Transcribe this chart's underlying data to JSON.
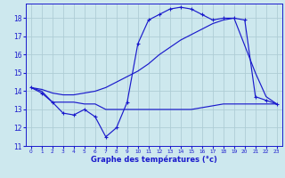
{
  "xlabel": "Graphe des températures (°c)",
  "xlim": [
    -0.5,
    23.5
  ],
  "ylim": [
    11,
    18.8
  ],
  "yticks": [
    11,
    12,
    13,
    14,
    15,
    16,
    17,
    18
  ],
  "xticks": [
    0,
    1,
    2,
    3,
    4,
    5,
    6,
    7,
    8,
    9,
    10,
    11,
    12,
    13,
    14,
    15,
    16,
    17,
    18,
    19,
    20,
    21,
    22,
    23
  ],
  "background_color": "#cde8ee",
  "grid_color": "#aecdd5",
  "line_color": "#1a1acc",
  "curve1_x": [
    0,
    1,
    2,
    3,
    4,
    5,
    6,
    7,
    8,
    9,
    10,
    11,
    12,
    13,
    14,
    15,
    16,
    17,
    18,
    19,
    20,
    21,
    22,
    23
  ],
  "curve1_y": [
    14.2,
    13.9,
    13.4,
    12.8,
    12.7,
    13.0,
    12.6,
    11.5,
    12.0,
    13.4,
    16.6,
    17.9,
    18.2,
    18.5,
    18.6,
    18.5,
    18.2,
    17.9,
    18.0,
    18.0,
    17.9,
    13.7,
    13.5,
    13.3
  ],
  "curve2_x": [
    0,
    1,
    2,
    3,
    4,
    5,
    6,
    7,
    8,
    9,
    10,
    11,
    12,
    13,
    14,
    15,
    16,
    17,
    18,
    19,
    20,
    21,
    22,
    23
  ],
  "curve2_y": [
    14.2,
    14.0,
    13.4,
    13.4,
    13.4,
    13.3,
    13.3,
    13.0,
    13.0,
    13.0,
    13.0,
    13.0,
    13.0,
    13.0,
    13.0,
    13.0,
    13.1,
    13.2,
    13.3,
    13.3,
    13.3,
    13.3,
    13.3,
    13.3
  ],
  "curve3_x": [
    0,
    1,
    2,
    3,
    4,
    5,
    6,
    7,
    8,
    9,
    10,
    11,
    12,
    13,
    14,
    15,
    16,
    17,
    18,
    19,
    20,
    21,
    22,
    23
  ],
  "curve3_y": [
    14.2,
    14.1,
    13.9,
    13.8,
    13.8,
    13.9,
    14.0,
    14.2,
    14.5,
    14.8,
    15.1,
    15.5,
    16.0,
    16.4,
    16.8,
    17.1,
    17.4,
    17.7,
    17.9,
    18.0,
    16.5,
    15.0,
    13.7,
    13.3
  ]
}
